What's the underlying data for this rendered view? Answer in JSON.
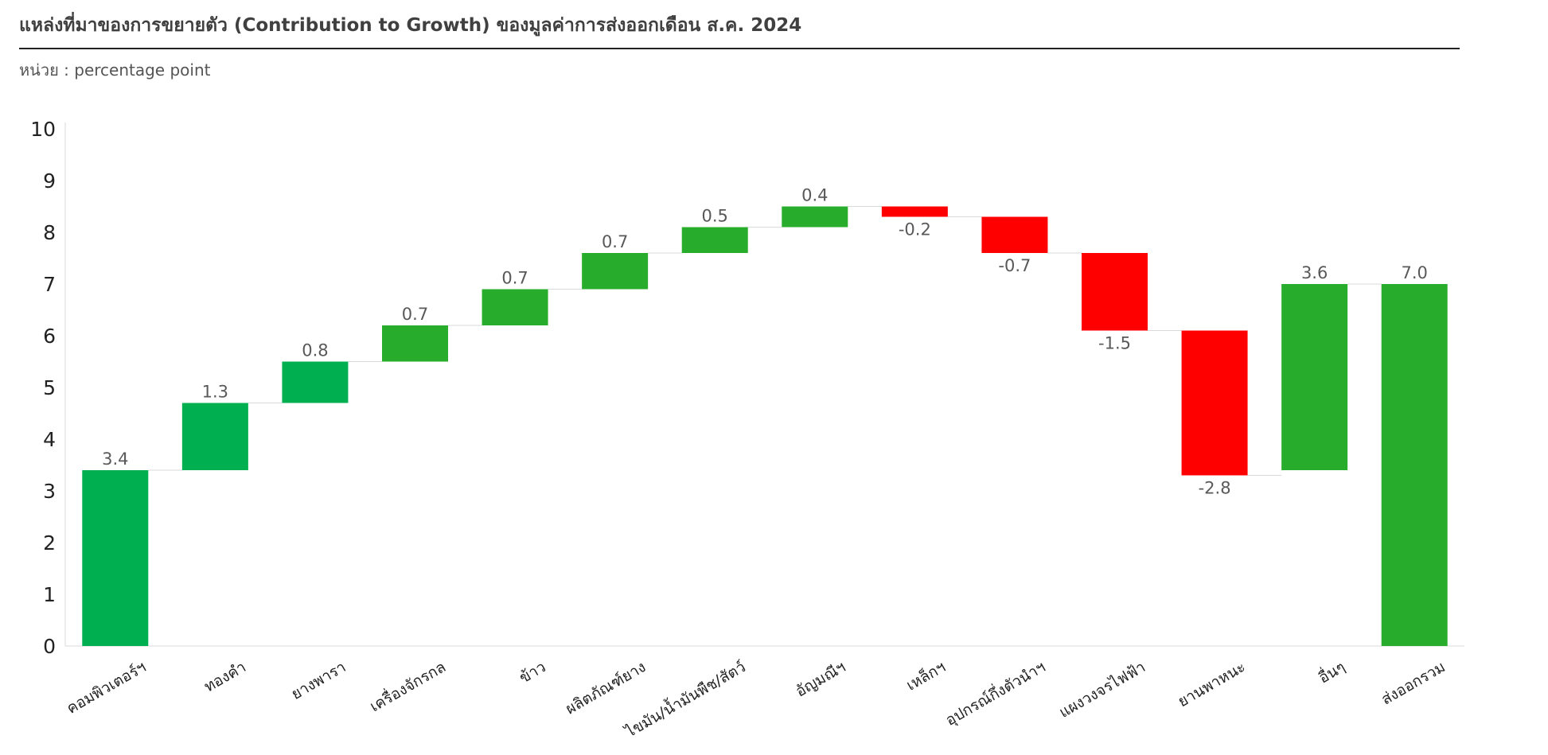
{
  "title": "แหล่งที่มาของการขยายตัว (Contribution to Growth) ของมูลค่าการส่งออกเดือน ส.ค. 2024",
  "unit_label": "หน่วย : percentage point",
  "chart_data": {
    "type": "bar",
    "subtype": "waterfall",
    "title": "แหล่งที่มาของการขยายตัว (Contribution to Growth) ของมูลค่าการส่งออกเดือน ส.ค. 2024",
    "ylabel": "",
    "xlabel": "",
    "ylim": [
      0,
      10
    ],
    "yticks": [
      0,
      1,
      2,
      3,
      4,
      5,
      6,
      7,
      8,
      9,
      10
    ],
    "grid": false,
    "legend": "none",
    "categories": [
      "คอมพิวเตอร์ฯ",
      "ทองคำ",
      "ยางพารา",
      "เครื่องจักรกล",
      "ข้าว",
      "ผลิตภัณฑ์ยาง",
      "ไขมัน/น้ำมันพืช/สัตว์",
      "อัญมณีฯ",
      "เหล็กฯ",
      "อุปกรณ์กึ่งตัวนำฯ",
      "แผงวงจรไฟฟ้า",
      "ยานพาหนะ",
      "อื่นๆ",
      "ส่งออกรวม"
    ],
    "values": [
      3.4,
      1.3,
      0.8,
      0.7,
      0.7,
      0.7,
      0.5,
      0.4,
      -0.2,
      -0.7,
      -1.5,
      -2.8,
      3.6,
      7.0
    ],
    "value_labels": [
      "3.4",
      "1.3",
      "0.8",
      "0.7",
      "0.7",
      "0.7",
      "0.5",
      "0.4",
      "-0.2",
      "-0.7",
      "-1.5",
      "-2.8",
      "3.6",
      "7.0"
    ],
    "starts": [
      0,
      3.4,
      4.7,
      5.5,
      6.2,
      6.9,
      7.6,
      8.1,
      8.5,
      8.3,
      7.6,
      6.1,
      3.4,
      0
    ],
    "colors": [
      "#00b050",
      "#00b050",
      "#00b050",
      "#28ac2c",
      "#28ac2c",
      "#28ac2c",
      "#28ac2c",
      "#28ac2c",
      "#ff0000",
      "#ff0000",
      "#ff0000",
      "#ff0000",
      "#28ac2c",
      "#28ac2c"
    ]
  }
}
